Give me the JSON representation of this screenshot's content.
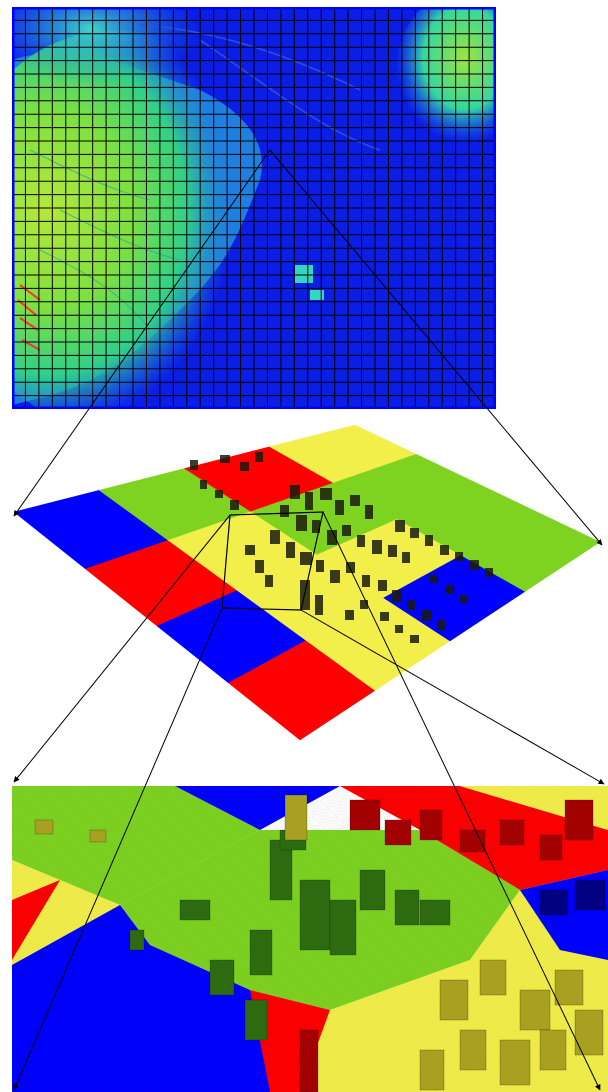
{
  "figure": {
    "panels": [
      {
        "id": "elevation-map",
        "grid_cols": 36,
        "grid_rows": 30
      },
      {
        "id": "partitioned-terrain",
        "grid_cols": 4,
        "grid_rows": 4
      },
      {
        "id": "detail-view"
      }
    ],
    "colors": {
      "partition_red": "#ff0000",
      "partition_blue": "#0000ff",
      "partition_yellow": "#f2ee4a",
      "partition_green": "#7ed321",
      "elevation_low": "#0a1ee6",
      "elevation_high": "#a8e838",
      "grid_line": "#000000",
      "frame": "#0000ff"
    }
  }
}
